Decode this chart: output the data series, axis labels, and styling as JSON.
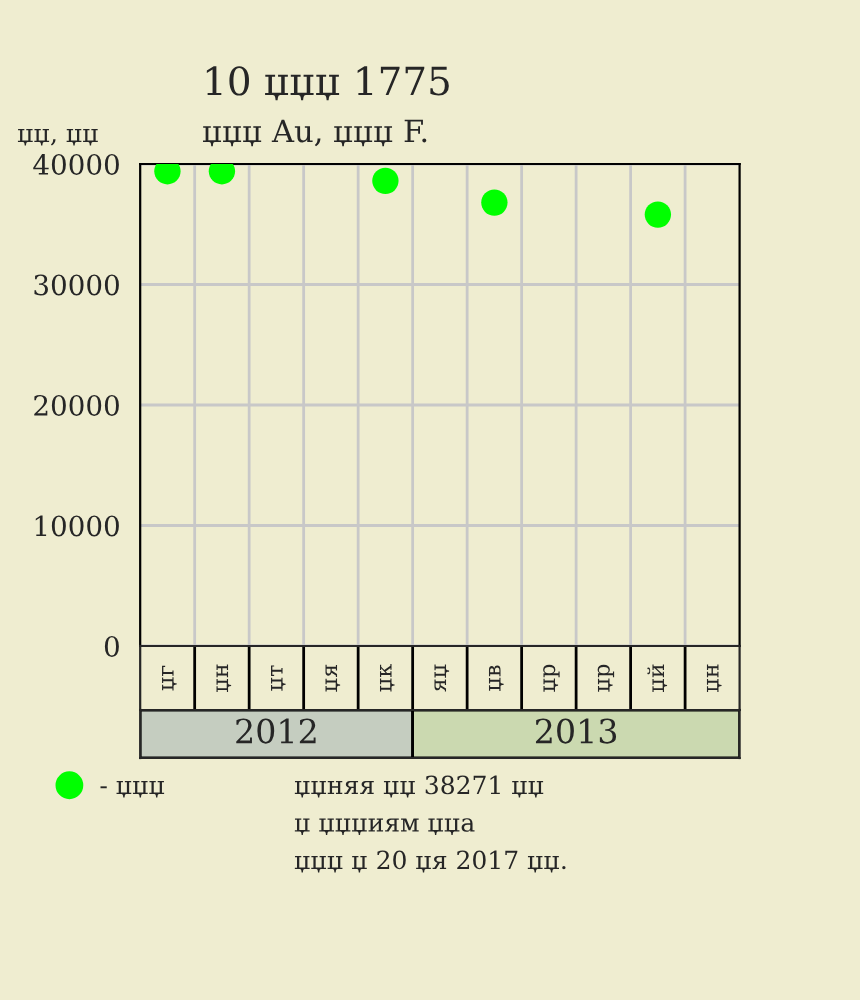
{
  "chart_data": {
    "type": "scatter",
    "title": "10 џџџ 1775",
    "subtitle": "џџџ Au, џџџ F.",
    "ylabel": "џџ, џџ",
    "categories": [
      "џг",
      "џн",
      "џт",
      "џя",
      "џк",
      "яџ",
      "џв",
      "џр",
      "џр",
      "џй",
      "џн"
    ],
    "series": [
      {
        "name": "- џџџ",
        "color": "#00ff00",
        "values": [
          39400,
          39400,
          null,
          null,
          38600,
          null,
          36800,
          null,
          null,
          35800,
          null
        ]
      }
    ],
    "ylim": [
      0,
      40000
    ],
    "yticks": [
      0,
      10000,
      20000,
      30000,
      40000
    ],
    "grid": true,
    "legend": "bottom left",
    "marker": "circle",
    "annotations": [
      "2012",
      "2013",
      "џџняя џџ 38271 џџ\nџ џџџиям џџа\nџџџ џ 20 џя 2017 џџ."
    ]
  }
}
